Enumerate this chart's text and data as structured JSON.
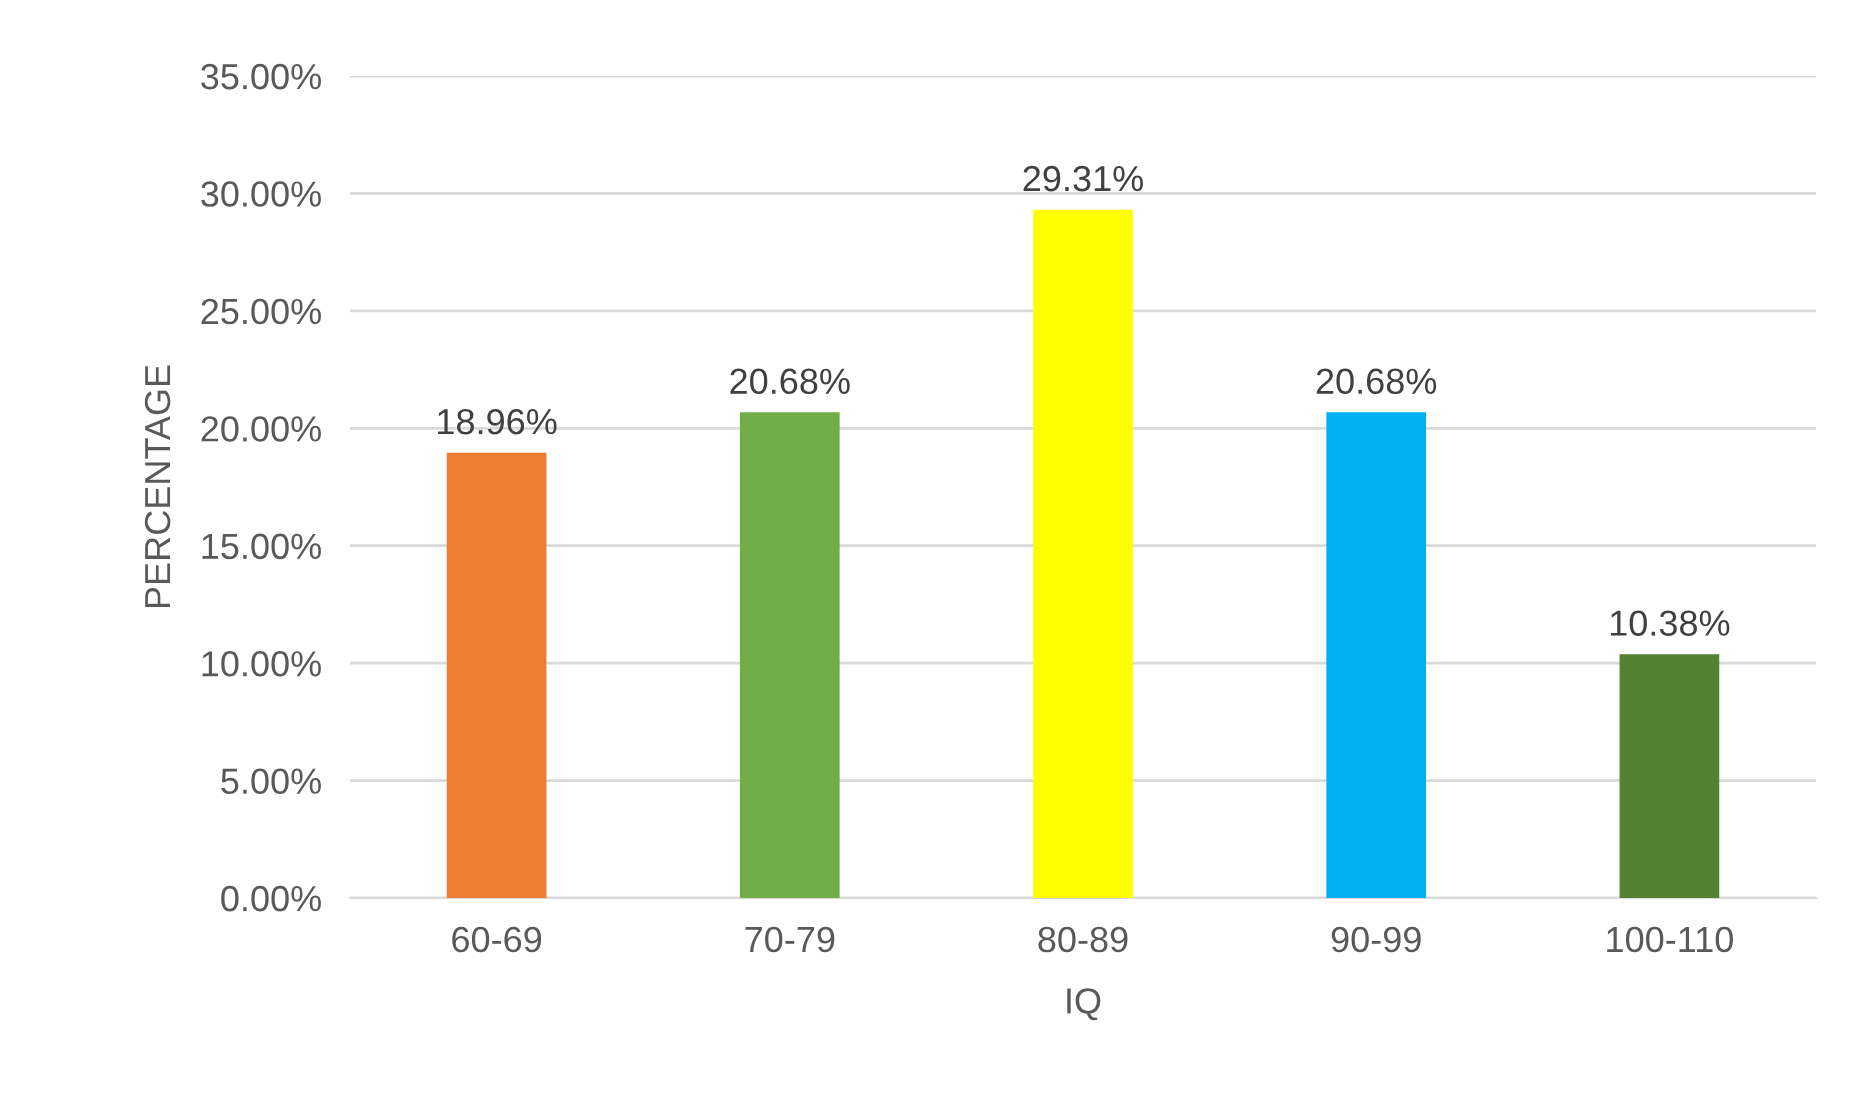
{
  "chart_data": {
    "type": "bar",
    "xlabel": "IQ",
    "ylabel": "PERCENTAGE",
    "categories": [
      "60-69",
      "70-79",
      "80-89",
      "90-99",
      "100-110"
    ],
    "values": [
      18.96,
      20.68,
      29.31,
      20.68,
      10.38
    ],
    "colors": [
      "#ed7d31",
      "#70ad47",
      "#ffff00",
      "#00b0f0",
      "#548235"
    ],
    "value_labels": [
      "18.96%",
      "20.68%",
      "29.31%",
      "20.68%",
      "10.38%"
    ],
    "ylim": [
      0,
      35
    ],
    "yticks": [
      {
        "value": 0,
        "label": "0.00%"
      },
      {
        "value": 5,
        "label": "5.00%"
      },
      {
        "value": 10,
        "label": "10.00%"
      },
      {
        "value": 15,
        "label": "15.00%"
      },
      {
        "value": 20,
        "label": "20.00%"
      },
      {
        "value": 25,
        "label": "25.00%"
      },
      {
        "value": 30,
        "label": "30.00%"
      },
      {
        "value": 35,
        "label": "35.00%"
      }
    ],
    "grid": "y"
  }
}
